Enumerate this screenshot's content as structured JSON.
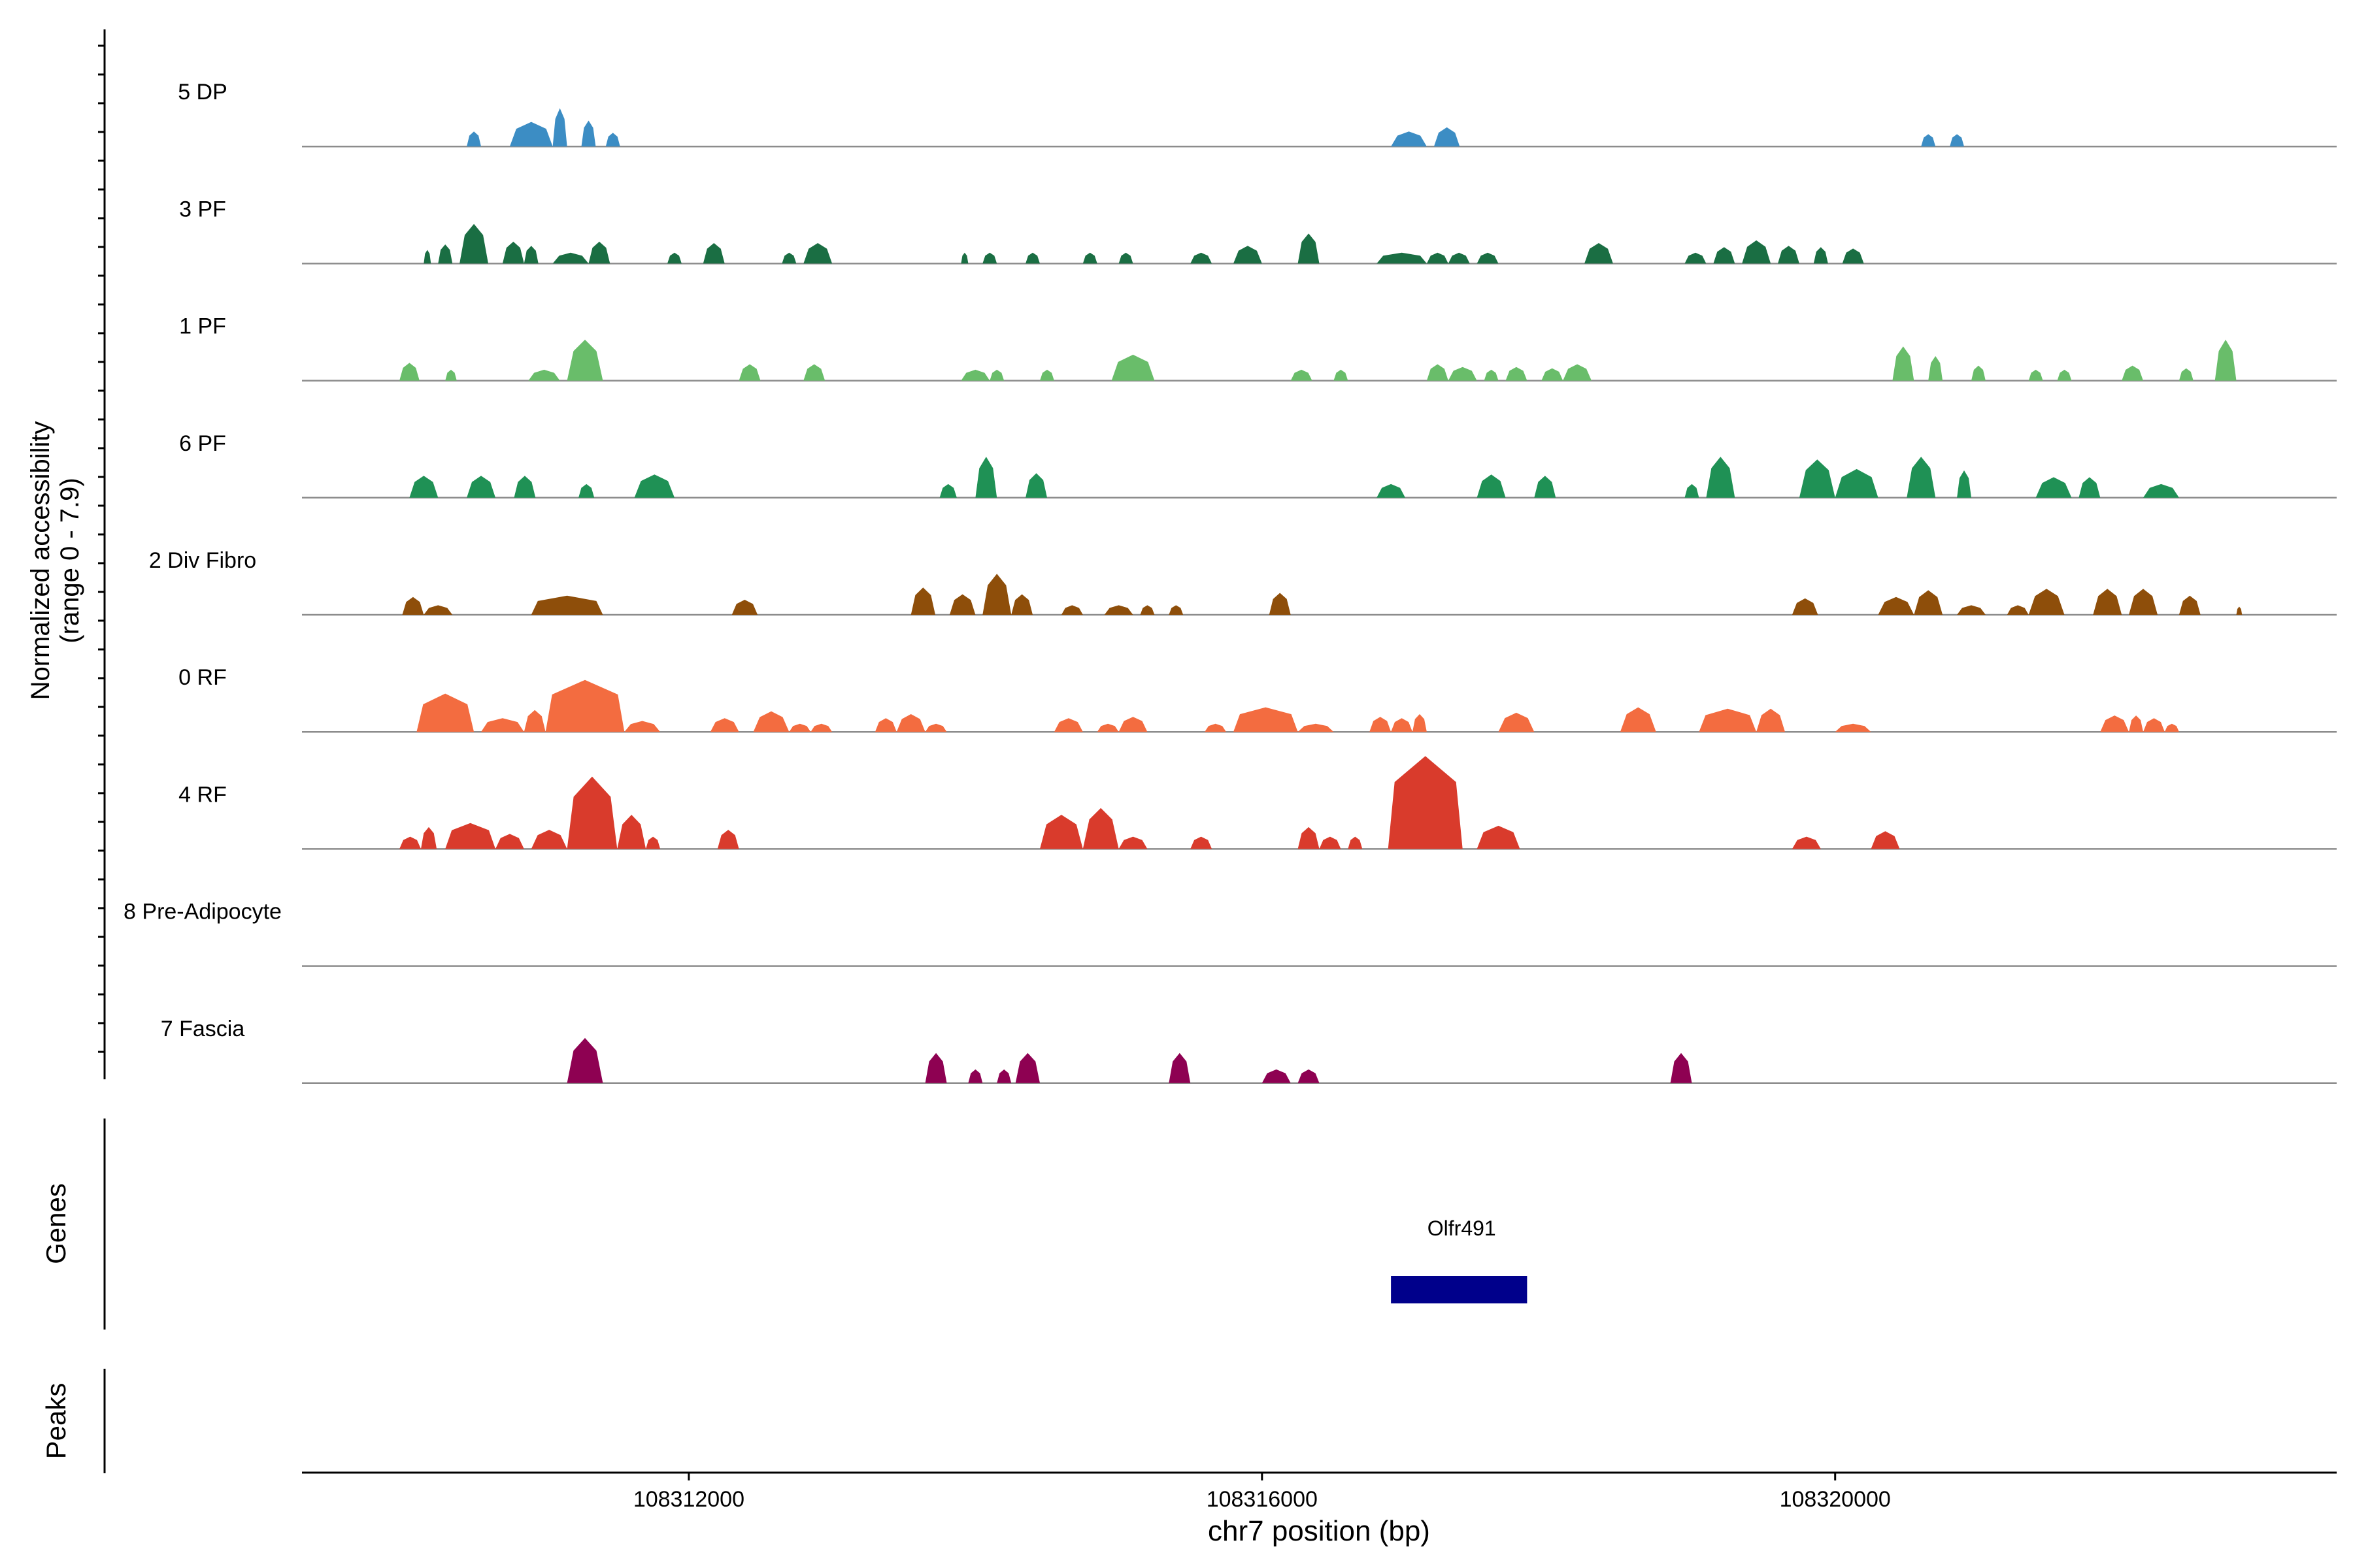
{
  "chart_data": {
    "type": "area",
    "title": "",
    "ylabel_line1": "Normalized accessibility",
    "ylabel_line2": "(range 0 - 7.9)",
    "xlabel": "chr7 position (bp)",
    "xlim": [
      108309300,
      108323500
    ],
    "xticks": [
      {
        "value": 108312000,
        "label": "108312000"
      },
      {
        "value": 108316000,
        "label": "108316000"
      },
      {
        "value": 108320000,
        "label": "108320000"
      }
    ],
    "ylim": [
      0,
      7.9
    ],
    "tracks": [
      {
        "name": "5 DP",
        "color": "#3C8DC4",
        "peaks": [
          [
            108310450,
            108310550,
            1.1
          ],
          [
            108310750,
            108311050,
            1.8
          ],
          [
            108311050,
            108311150,
            2.8
          ],
          [
            108311250,
            108311350,
            1.9
          ],
          [
            108311420,
            108311520,
            1.0
          ],
          [
            108316900,
            108317150,
            1.1
          ],
          [
            108317200,
            108317380,
            1.4
          ],
          [
            108320600,
            108320700,
            0.9
          ],
          [
            108320800,
            108320900,
            0.9
          ]
        ]
      },
      {
        "name": "3 PF",
        "color": "#1A6E43",
        "peaks": [
          [
            108310150,
            108310200,
            1.0
          ],
          [
            108310250,
            108310350,
            1.4
          ],
          [
            108310400,
            108310600,
            2.9
          ],
          [
            108310700,
            108310850,
            1.6
          ],
          [
            108310850,
            108310950,
            1.3
          ],
          [
            108311050,
            108311300,
            0.8
          ],
          [
            108311300,
            108311450,
            1.6
          ],
          [
            108311850,
            108311950,
            0.8
          ],
          [
            108312100,
            108312250,
            1.5
          ],
          [
            108312650,
            108312750,
            0.8
          ],
          [
            108312800,
            108313000,
            1.5
          ],
          [
            108313900,
            108313950,
            0.8
          ],
          [
            108314050,
            108314150,
            0.8
          ],
          [
            108314350,
            108314450,
            0.8
          ],
          [
            108314750,
            108314850,
            0.8
          ],
          [
            108315000,
            108315100,
            0.8
          ],
          [
            108315500,
            108315650,
            0.8
          ],
          [
            108315800,
            108316000,
            1.3
          ],
          [
            108316250,
            108316400,
            2.2
          ],
          [
            108316800,
            108317150,
            0.8
          ],
          [
            108317150,
            108317300,
            0.8
          ],
          [
            108317300,
            108317450,
            0.8
          ],
          [
            108317500,
            108317650,
            0.8
          ],
          [
            108318250,
            108318450,
            1.5
          ],
          [
            108318950,
            108319100,
            0.8
          ],
          [
            108319150,
            108319300,
            1.2
          ],
          [
            108319350,
            108319550,
            1.7
          ],
          [
            108319600,
            108319750,
            1.3
          ],
          [
            108319850,
            108319950,
            1.2
          ],
          [
            108320050,
            108320200,
            1.1
          ]
        ]
      },
      {
        "name": "1 PF",
        "color": "#69BD6A",
        "peaks": [
          [
            108309980,
            108310120,
            1.3
          ],
          [
            108310300,
            108310380,
            0.8
          ],
          [
            108310880,
            108311100,
            0.8
          ],
          [
            108311150,
            108311400,
            3.0
          ],
          [
            108312350,
            108312500,
            1.2
          ],
          [
            108312800,
            108312950,
            1.2
          ],
          [
            108313900,
            108314100,
            0.8
          ],
          [
            108314100,
            108314200,
            0.8
          ],
          [
            108314450,
            108314550,
            0.8
          ],
          [
            108314950,
            108315250,
            1.9
          ],
          [
            108316200,
            108316350,
            0.8
          ],
          [
            108316500,
            108316600,
            0.8
          ],
          [
            108317150,
            108317300,
            1.2
          ],
          [
            108317300,
            108317500,
            1.0
          ],
          [
            108317550,
            108317650,
            0.8
          ],
          [
            108317700,
            108317850,
            1.0
          ],
          [
            108317950,
            108318100,
            0.9
          ],
          [
            108318100,
            108318300,
            1.2
          ],
          [
            108320400,
            108320550,
            2.5
          ],
          [
            108320650,
            108320750,
            1.8
          ],
          [
            108320950,
            108321050,
            1.1
          ],
          [
            108321350,
            108321450,
            0.8
          ],
          [
            108321550,
            108321650,
            0.8
          ],
          [
            108322000,
            108322150,
            1.1
          ],
          [
            108322400,
            108322500,
            0.9
          ],
          [
            108322650,
            108322800,
            3.0
          ]
        ]
      },
      {
        "name": "6 PF",
        "color": "#1F9155",
        "peaks": [
          [
            108310050,
            108310250,
            1.6
          ],
          [
            108310450,
            108310650,
            1.6
          ],
          [
            108310780,
            108310930,
            1.6
          ],
          [
            108311230,
            108311340,
            1.0
          ],
          [
            108311620,
            108311900,
            1.7
          ],
          [
            108313750,
            108313870,
            1.0
          ],
          [
            108314000,
            108314150,
            3.0
          ],
          [
            108314350,
            108314500,
            1.8
          ],
          [
            108316800,
            108317000,
            1.0
          ],
          [
            108317500,
            108317700,
            1.7
          ],
          [
            108317900,
            108318050,
            1.6
          ],
          [
            108318950,
            108319050,
            1.0
          ],
          [
            108319100,
            108319300,
            3.0
          ],
          [
            108319750,
            108320000,
            2.8
          ],
          [
            108320000,
            108320300,
            2.1
          ],
          [
            108320500,
            108320700,
            3.0
          ],
          [
            108320850,
            108320950,
            2.0
          ],
          [
            108321400,
            108321650,
            1.5
          ],
          [
            108321700,
            108321850,
            1.5
          ],
          [
            108322150,
            108322400,
            1.0
          ]
        ]
      },
      {
        "name": "2 Div Fibro",
        "color": "#8E4E0A",
        "peaks": [
          [
            108310000,
            108310150,
            1.3
          ],
          [
            108310150,
            108310350,
            0.7
          ],
          [
            108310900,
            108311400,
            1.4
          ],
          [
            108312300,
            108312480,
            1.1
          ],
          [
            108313550,
            108313720,
            2.0
          ],
          [
            108313820,
            108314000,
            1.5
          ],
          [
            108314050,
            108314250,
            3.0
          ],
          [
            108314250,
            108314400,
            1.5
          ],
          [
            108314600,
            108314750,
            0.7
          ],
          [
            108314900,
            108315100,
            0.7
          ],
          [
            108315150,
            108315250,
            0.7
          ],
          [
            108315350,
            108315450,
            0.7
          ],
          [
            108316050,
            108316200,
            1.6
          ],
          [
            108319700,
            108319880,
            1.2
          ],
          [
            108320300,
            108320550,
            1.3
          ],
          [
            108320550,
            108320750,
            1.8
          ],
          [
            108320850,
            108321050,
            0.7
          ],
          [
            108321200,
            108321350,
            0.7
          ],
          [
            108321350,
            108321600,
            1.9
          ],
          [
            108321800,
            108322000,
            1.9
          ],
          [
            108322050,
            108322250,
            1.9
          ],
          [
            108322400,
            108322550,
            1.4
          ],
          [
            108322800,
            108322840,
            0.6
          ]
        ]
      },
      {
        "name": "0 RF",
        "color": "#F36C40",
        "peaks": [
          [
            108310100,
            108310500,
            2.8
          ],
          [
            108310550,
            108310850,
            1.0
          ],
          [
            108310850,
            108311000,
            1.6
          ],
          [
            108311000,
            108311550,
            3.8
          ],
          [
            108311550,
            108311800,
            0.8
          ],
          [
            108312150,
            108312350,
            1.0
          ],
          [
            108312450,
            108312700,
            1.5
          ],
          [
            108312700,
            108312850,
            0.6
          ],
          [
            108312850,
            108313000,
            0.6
          ],
          [
            108313300,
            108313450,
            1.0
          ],
          [
            108313450,
            108313650,
            1.3
          ],
          [
            108313650,
            108313800,
            0.6
          ],
          [
            108314550,
            108314750,
            1.0
          ],
          [
            108314850,
            108315000,
            0.6
          ],
          [
            108315000,
            108315200,
            1.1
          ],
          [
            108315600,
            108315750,
            0.6
          ],
          [
            108315800,
            108316250,
            1.8
          ],
          [
            108316250,
            108316500,
            0.6
          ],
          [
            108316750,
            108316900,
            1.1
          ],
          [
            108316900,
            108317050,
            1.0
          ],
          [
            108317050,
            108317150,
            1.3
          ],
          [
            108317650,
            108317900,
            1.4
          ],
          [
            108318500,
            108318750,
            1.8
          ],
          [
            108319050,
            108319450,
            1.7
          ],
          [
            108319450,
            108319650,
            1.7
          ],
          [
            108320000,
            108320250,
            0.6
          ],
          [
            108321850,
            108322050,
            1.2
          ],
          [
            108322050,
            108322150,
            1.2
          ],
          [
            108322150,
            108322300,
            1.0
          ],
          [
            108322300,
            108322400,
            0.6
          ]
        ]
      },
      {
        "name": "4 RF",
        "color": "#D93B2C",
        "peaks": [
          [
            108309980,
            108310130,
            0.9
          ],
          [
            108310130,
            108310240,
            1.6
          ],
          [
            108310300,
            108310650,
            1.9
          ],
          [
            108310650,
            108310850,
            1.1
          ],
          [
            108310900,
            108311150,
            1.4
          ],
          [
            108311150,
            108311500,
            5.3
          ],
          [
            108311500,
            108311700,
            2.5
          ],
          [
            108311700,
            108311800,
            0.9
          ],
          [
            108312200,
            108312350,
            1.4
          ],
          [
            108314450,
            108314750,
            2.5
          ],
          [
            108314750,
            108315000,
            3.0
          ],
          [
            108315000,
            108315200,
            0.9
          ],
          [
            108315500,
            108315650,
            0.9
          ],
          [
            108316250,
            108316400,
            1.6
          ],
          [
            108316400,
            108316550,
            0.9
          ],
          [
            108316600,
            108316700,
            0.9
          ],
          [
            108316880,
            108317400,
            6.8
          ],
          [
            108317500,
            108317800,
            1.7
          ],
          [
            108319700,
            108319900,
            0.9
          ],
          [
            108320250,
            108320450,
            1.3
          ]
        ]
      },
      {
        "name": "8 Pre-Adipocyte",
        "color": "#9E9E9E",
        "peaks": []
      },
      {
        "name": "7 Fascia",
        "color": "#8E0152",
        "peaks": [
          [
            108311150,
            108311400,
            3.3
          ],
          [
            108313650,
            108313800,
            2.2
          ],
          [
            108313950,
            108314050,
            1.0
          ],
          [
            108314150,
            108314250,
            1.0
          ],
          [
            108314280,
            108314450,
            2.2
          ],
          [
            108315350,
            108315500,
            2.2
          ],
          [
            108316000,
            108316200,
            1.0
          ],
          [
            108316250,
            108316400,
            1.0
          ],
          [
            108318850,
            108319000,
            2.2
          ]
        ]
      }
    ],
    "genes_panel_label": "Genes",
    "genes": [
      {
        "name": "Olfr491",
        "start": 108316900,
        "end": 108317850,
        "color": "#00008B"
      }
    ],
    "peaks_panel_label": "Peaks",
    "peaks_track": []
  }
}
